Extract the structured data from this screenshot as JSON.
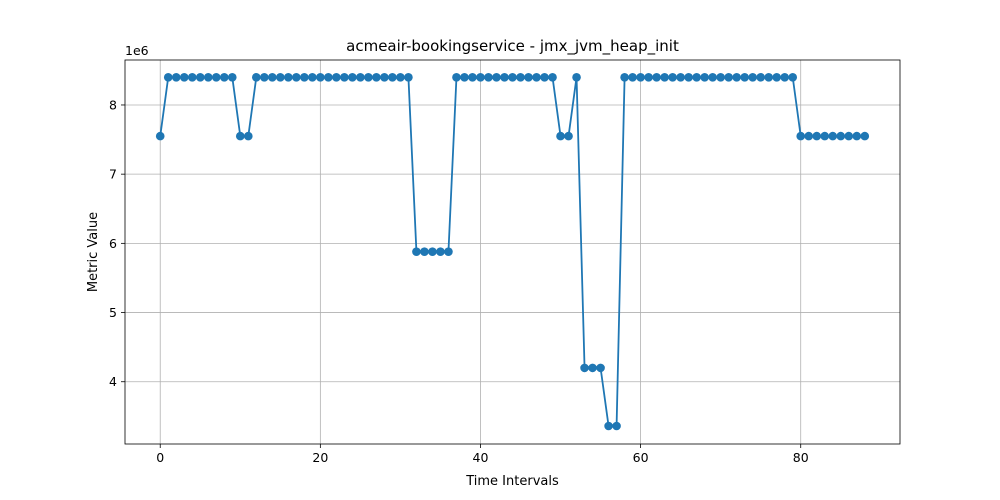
{
  "chart_data": {
    "type": "line",
    "title": "acmeair-bookingservice - jmx_jvm_heap_init",
    "xlabel": "Time Intervals",
    "ylabel": "Metric Value",
    "offset_label": "1e6",
    "xlim": [
      -4.4,
      92.4
    ],
    "ylim": [
      3100000,
      8650000
    ],
    "xticks": [
      0,
      20,
      40,
      60,
      80
    ],
    "yticks": [
      4,
      5,
      6,
      7,
      8
    ],
    "grid": true,
    "marker": "circle",
    "color": "#1f77b4",
    "series": [
      {
        "values": [
          7550000,
          8400000,
          8400000,
          8400000,
          8400000,
          8400000,
          8400000,
          8400000,
          8400000,
          8400000,
          7550000,
          7550000,
          8400000,
          8400000,
          8400000,
          8400000,
          8400000,
          8400000,
          8400000,
          8400000,
          8400000,
          8400000,
          8400000,
          8400000,
          8400000,
          8400000,
          8400000,
          8400000,
          8400000,
          8400000,
          8400000,
          8400000,
          5880000,
          5880000,
          5880000,
          5880000,
          5880000,
          8400000,
          8400000,
          8400000,
          8400000,
          8400000,
          8400000,
          8400000,
          8400000,
          8400000,
          8400000,
          8400000,
          8400000,
          8400000,
          7550000,
          7550000,
          8400000,
          4200000,
          4200000,
          4200000,
          3360000,
          3360000,
          8400000,
          8400000,
          8400000,
          8400000,
          8400000,
          8400000,
          8400000,
          8400000,
          8400000,
          8400000,
          8400000,
          8400000,
          8400000,
          8400000,
          8400000,
          8400000,
          8400000,
          8400000,
          8400000,
          8400000,
          8400000,
          8400000,
          7550000,
          7550000,
          7550000,
          7550000,
          7550000,
          7550000,
          7550000,
          7550000,
          7550000
        ]
      }
    ]
  }
}
